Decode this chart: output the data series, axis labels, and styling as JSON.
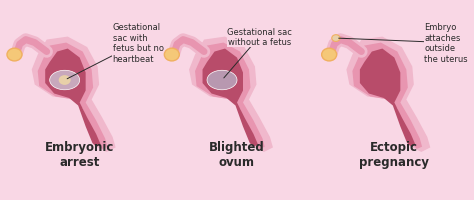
{
  "background_color": "#f9d7e5",
  "title_color": "#2a2a2a",
  "label_color": "#2a2a2a",
  "arrow_color": "#2a2a2a",
  "outer_pink": "#f0b8cc",
  "mid_pink": "#e895b0",
  "inner_dark": "#b84c6a",
  "cervix_dark": "#c05878",
  "sac_color_arrest": "#c8a8bc",
  "sac_color_blighted": "#b898b0",
  "embryo_color": "#e8d0a8",
  "ovary_color": "#f5c878",
  "ovary_edge": "#f0b060",
  "titles": [
    "Embryonic\narrest",
    "Blighted\novum",
    "Ectopic\npregnancy"
  ],
  "annotations": [
    "Gestational\nsac with\nfetus but no\nheartbeat",
    "Gestational sac\nwithout a fetus",
    "Embryo\nattaches\noutside\nthe uterus"
  ],
  "title_fontsize": 8.5,
  "annotation_fontsize": 6.0,
  "figure_width": 4.74,
  "figure_height": 2.01,
  "dpi": 100
}
